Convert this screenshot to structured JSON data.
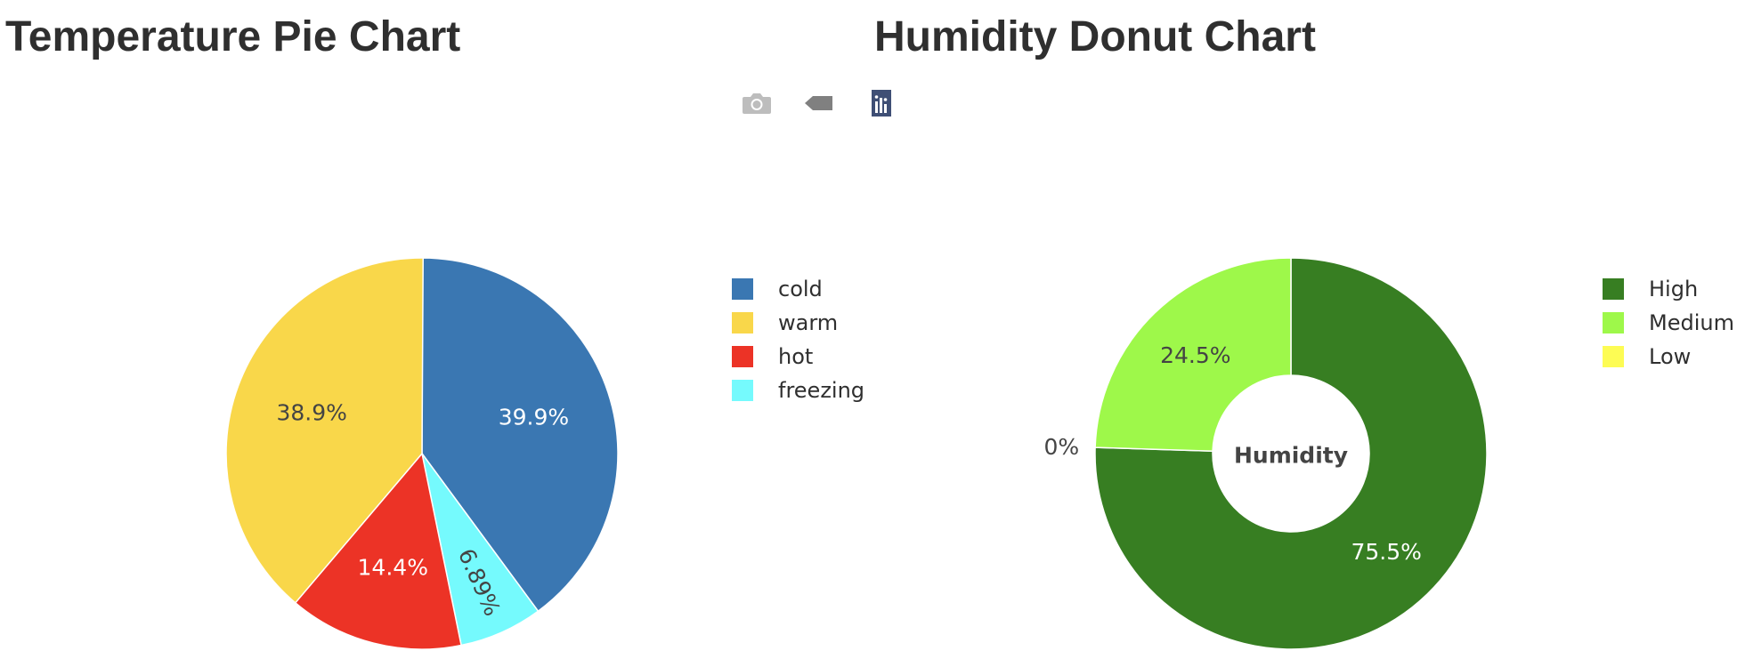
{
  "titles": {
    "pie": "Temperature Pie Chart",
    "donut": "Humidity Donut Chart"
  },
  "modebar": {
    "icons": [
      "camera-icon",
      "tag-icon",
      "plotly-logo-icon"
    ]
  },
  "chart_data": [
    {
      "type": "pie",
      "title": "Temperature Pie Chart",
      "labels": [
        "cold",
        "warm",
        "hot",
        "freezing"
      ],
      "slices_clockwise_from_top": [
        {
          "label": "cold",
          "percent": 39.9,
          "text": "39.9%",
          "color": "#3a77b2"
        },
        {
          "label": "freezing",
          "percent": 6.89,
          "text": "6.89%",
          "color": "#75fafd"
        },
        {
          "label": "hot",
          "percent": 14.4,
          "text": "14.4%",
          "color": "#ec3326"
        },
        {
          "label": "warm",
          "percent": 38.9,
          "text": "38.9%",
          "color": "#f9d74a"
        }
      ],
      "legend": [
        {
          "label": "cold",
          "color": "#3a77b2"
        },
        {
          "label": "warm",
          "color": "#f9d74a"
        },
        {
          "label": "hot",
          "color": "#ec3326"
        },
        {
          "label": "freezing",
          "color": "#75fafd"
        }
      ],
      "legend_position": "right"
    },
    {
      "type": "pie",
      "hole": true,
      "title": "Humidity Donut Chart",
      "center_text": "Humidity",
      "slices_clockwise_from_top": [
        {
          "label": "High",
          "percent": 75.5,
          "text": "75.5%",
          "color": "#377e22"
        },
        {
          "label": "Low",
          "percent": 0,
          "text": "0%",
          "color": "#fdfc54"
        },
        {
          "label": "Medium",
          "percent": 24.5,
          "text": "24.5%",
          "color": "#9ef84a"
        }
      ],
      "legend": [
        {
          "label": "High",
          "color": "#377e22"
        },
        {
          "label": "Medium",
          "color": "#9ef84a"
        },
        {
          "label": "Low",
          "color": "#fdfc54"
        }
      ],
      "legend_position": "right"
    }
  ]
}
